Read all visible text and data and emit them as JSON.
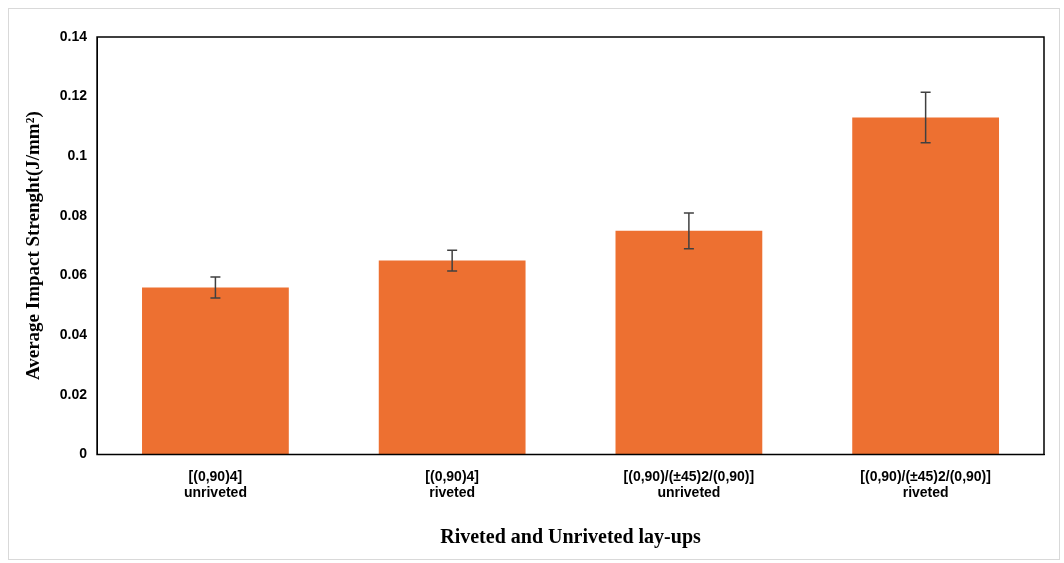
{
  "chart_data": {
    "type": "bar",
    "xlabel": "Riveted and Unriveted lay-ups",
    "ylabel": "Average Impact Strenght(J/mm²)",
    "categories": [
      "[(0,90)4]\nunriveted",
      "[(0,90)4]\nriveted",
      "[(0,90)/(±45)2/(0,90)]\nunriveted",
      "[(0,90)/(±45)2/(0,90)]\nriveted"
    ],
    "values": [
      0.056,
      0.065,
      0.075,
      0.113
    ],
    "errors": [
      0.0035,
      0.0035,
      0.006,
      0.0085
    ],
    "color": "#ed7031",
    "ylim": [
      0,
      0.14
    ],
    "yticks": [
      0,
      0.02,
      0.04,
      0.06,
      0.08,
      0.1,
      0.12,
      0.14
    ],
    "grid": false,
    "legend": false
  }
}
